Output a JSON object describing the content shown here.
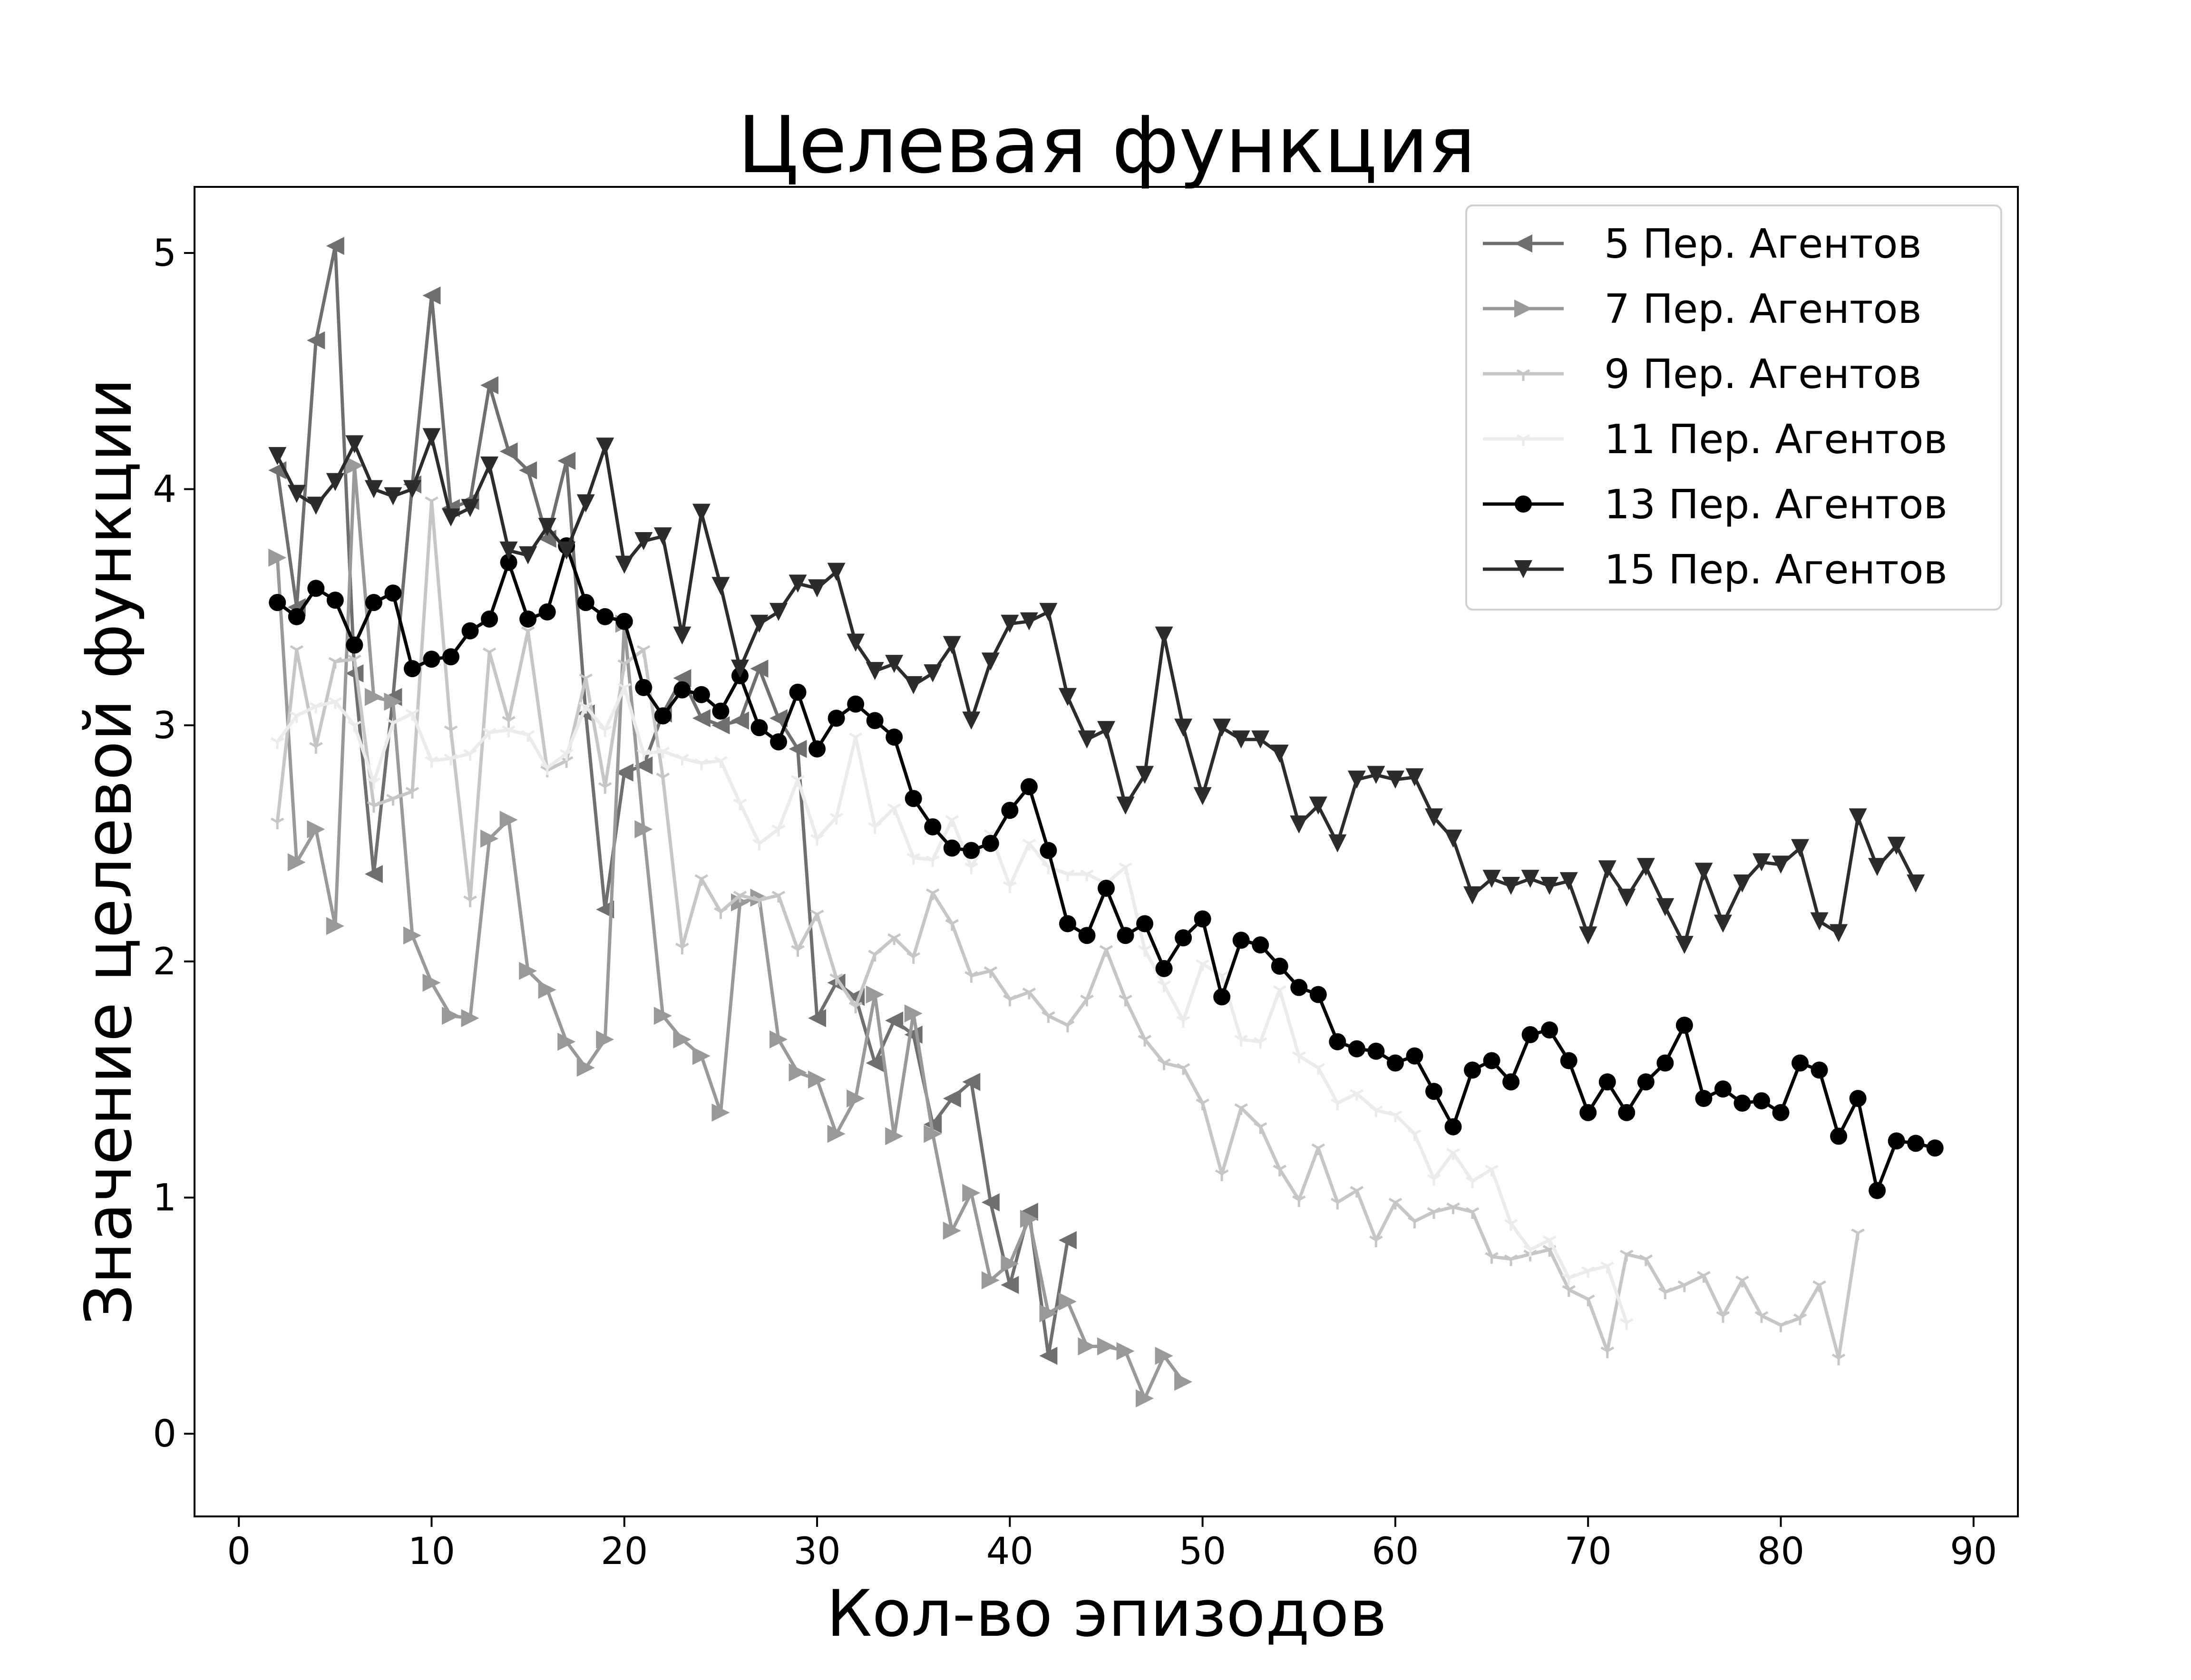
{
  "chart_data": {
    "type": "line",
    "title": "Целевая функция",
    "xlabel": "Кол-во эпизодов",
    "ylabel": "Значение целевой функции",
    "xlim": [
      -2.3,
      92.3
    ],
    "ylim": [
      -0.35,
      5.28
    ],
    "xticks": [
      0,
      10,
      20,
      30,
      40,
      50,
      60,
      70,
      80,
      90
    ],
    "yticks": [
      0,
      1,
      2,
      3,
      4,
      5
    ],
    "grid": false,
    "legend_position": "top-right",
    "series": [
      {
        "name": "5 Пер. Агентов",
        "color": "#6f6f6f",
        "marker": "triangle-left",
        "x": [
          2,
          3,
          4,
          5,
          6,
          7,
          8,
          9,
          10,
          11,
          12,
          13,
          14,
          15,
          16,
          17,
          18,
          19,
          20,
          21,
          22,
          23,
          24,
          25,
          26,
          27,
          28,
          29,
          30,
          31,
          32,
          33,
          34,
          35,
          36,
          37,
          38,
          39,
          40,
          41,
          42,
          43
        ],
        "y": [
          4.08,
          3.5,
          4.63,
          5.03,
          3.22,
          2.37,
          3.12,
          4.02,
          4.82,
          3.92,
          3.95,
          4.44,
          4.16,
          4.08,
          3.79,
          4.12,
          3.05,
          2.22,
          2.8,
          2.83,
          3.05,
          3.2,
          3.03,
          3.0,
          3.02,
          3.24,
          3.03,
          2.9,
          1.76,
          1.91,
          1.85,
          1.57,
          1.75,
          1.69,
          1.31,
          1.42,
          1.49,
          0.98,
          0.63,
          0.94,
          0.33,
          0.82
        ]
      },
      {
        "name": "7 Пер. Агентов",
        "color": "#999999",
        "marker": "triangle-right",
        "x": [
          2,
          3,
          4,
          5,
          6,
          7,
          8,
          9,
          10,
          11,
          12,
          13,
          14,
          15,
          16,
          17,
          18,
          19,
          20,
          21,
          22,
          23,
          24,
          25,
          26,
          27,
          28,
          29,
          30,
          31,
          32,
          33,
          34,
          35,
          36,
          37,
          38,
          39,
          40,
          41,
          42,
          43,
          44,
          45,
          46,
          47,
          48,
          49
        ],
        "y": [
          3.71,
          2.42,
          2.56,
          2.15,
          4.1,
          3.12,
          3.1,
          2.11,
          1.91,
          1.77,
          1.76,
          2.52,
          2.6,
          1.96,
          1.88,
          1.66,
          1.55,
          1.67,
          3.43,
          2.56,
          1.77,
          1.67,
          1.6,
          1.36,
          2.25,
          2.27,
          1.67,
          1.53,
          1.5,
          1.27,
          1.42,
          1.86,
          1.26,
          1.78,
          1.27,
          0.86,
          1.02,
          0.65,
          0.72,
          0.91,
          0.51,
          0.56,
          0.37,
          0.37,
          0.35,
          0.15,
          0.33,
          0.22
        ]
      },
      {
        "name": "9 Пер. Агентов",
        "color": "#c6c6c6",
        "marker": "tri-down",
        "x": [
          2,
          3,
          4,
          5,
          6,
          7,
          8,
          9,
          10,
          11,
          12,
          13,
          14,
          15,
          16,
          17,
          18,
          19,
          20,
          21,
          22,
          23,
          24,
          25,
          26,
          27,
          28,
          29,
          30,
          31,
          32,
          33,
          34,
          35,
          36,
          37,
          38,
          39,
          40,
          41,
          42,
          43,
          44,
          45,
          46,
          47,
          48,
          49,
          50,
          51,
          52,
          53,
          54,
          55,
          56,
          57,
          58,
          59,
          60,
          61,
          62,
          63,
          64,
          65,
          66,
          67,
          68,
          69,
          70,
          71,
          72,
          73,
          74,
          75,
          76,
          77,
          78,
          79,
          80,
          81,
          82,
          83,
          84
        ],
        "y": [
          2.59,
          3.32,
          2.91,
          3.27,
          3.28,
          2.66,
          2.69,
          2.72,
          3.95,
          2.98,
          2.26,
          3.31,
          3.02,
          3.4,
          2.81,
          2.85,
          3.2,
          2.74,
          3.26,
          3.32,
          2.78,
          2.06,
          2.35,
          2.21,
          2.28,
          2.26,
          2.28,
          2.05,
          2.2,
          1.93,
          1.81,
          2.03,
          2.1,
          2.02,
          2.29,
          2.16,
          1.94,
          1.96,
          1.84,
          1.87,
          1.77,
          1.73,
          1.84,
          2.05,
          1.84,
          1.67,
          1.57,
          1.55,
          1.4,
          1.1,
          1.38,
          1.3,
          1.12,
          0.99,
          1.21,
          0.98,
          1.03,
          0.82,
          0.98,
          0.9,
          0.94,
          0.96,
          0.94,
          0.75,
          0.74,
          0.76,
          0.78,
          0.61,
          0.57,
          0.35,
          0.76,
          0.74,
          0.6,
          0.63,
          0.67,
          0.5,
          0.65,
          0.5,
          0.46,
          0.49,
          0.63,
          0.32,
          0.85
        ]
      },
      {
        "name": "11 Пер. Агентов",
        "color": "#ebebeb",
        "marker": "tri-down",
        "x": [
          2,
          3,
          4,
          5,
          6,
          7,
          8,
          9,
          10,
          11,
          12,
          13,
          14,
          15,
          16,
          17,
          18,
          19,
          20,
          21,
          22,
          23,
          24,
          25,
          26,
          27,
          28,
          29,
          30,
          31,
          32,
          33,
          34,
          35,
          36,
          37,
          38,
          39,
          40,
          41,
          42,
          43,
          44,
          45,
          46,
          47,
          48,
          49,
          50,
          51,
          52,
          53,
          54,
          55,
          56,
          57,
          58,
          59,
          60,
          61,
          62,
          63,
          64,
          65,
          66,
          67,
          68,
          69,
          70,
          71,
          72
        ],
        "y": [
          2.93,
          3.04,
          3.08,
          3.1,
          3.0,
          2.76,
          3.01,
          3.05,
          2.85,
          2.86,
          2.88,
          2.97,
          2.98,
          2.96,
          2.82,
          2.88,
          3.08,
          2.98,
          3.16,
          2.88,
          2.89,
          2.86,
          2.84,
          2.85,
          2.67,
          2.5,
          2.56,
          2.77,
          2.52,
          2.61,
          2.95,
          2.57,
          2.65,
          2.44,
          2.43,
          2.6,
          2.4,
          2.54,
          2.32,
          2.5,
          2.4,
          2.37,
          2.37,
          2.33,
          2.4,
          2.05,
          1.9,
          1.75,
          1.99,
          1.94,
          1.67,
          1.66,
          1.88,
          1.6,
          1.55,
          1.4,
          1.44,
          1.37,
          1.35,
          1.27,
          1.08,
          1.19,
          1.07,
          1.12,
          0.89,
          0.78,
          0.82,
          0.66,
          0.69,
          0.71,
          0.47
        ]
      },
      {
        "name": "13 Пер. Агентов",
        "color": "#000000",
        "marker": "circle",
        "x": [
          2,
          3,
          4,
          5,
          6,
          7,
          8,
          9,
          10,
          11,
          12,
          13,
          14,
          15,
          16,
          17,
          18,
          19,
          20,
          21,
          22,
          23,
          24,
          25,
          26,
          27,
          28,
          29,
          30,
          31,
          32,
          33,
          34,
          35,
          36,
          37,
          38,
          39,
          40,
          41,
          42,
          43,
          44,
          45,
          46,
          47,
          48,
          49,
          50,
          51,
          52,
          53,
          54,
          55,
          56,
          57,
          58,
          59,
          60,
          61,
          62,
          63,
          64,
          65,
          66,
          67,
          68,
          69,
          70,
          71,
          72,
          73,
          74,
          75,
          76,
          77,
          78,
          79,
          80,
          81,
          82,
          83,
          84,
          85,
          86,
          87,
          88
        ],
        "y": [
          3.52,
          3.46,
          3.58,
          3.53,
          3.34,
          3.52,
          3.56,
          3.24,
          3.28,
          3.29,
          3.4,
          3.45,
          3.69,
          3.45,
          3.48,
          3.76,
          3.52,
          3.46,
          3.44,
          3.16,
          3.04,
          3.15,
          3.13,
          3.06,
          3.21,
          2.99,
          2.93,
          3.14,
          2.9,
          3.03,
          3.09,
          3.02,
          2.95,
          2.69,
          2.57,
          2.48,
          2.47,
          2.5,
          2.64,
          2.74,
          2.47,
          2.16,
          2.11,
          2.31,
          2.11,
          2.16,
          1.97,
          2.1,
          2.18,
          1.85,
          2.09,
          2.07,
          1.98,
          1.89,
          1.86,
          1.66,
          1.63,
          1.62,
          1.57,
          1.6,
          1.45,
          1.3,
          1.54,
          1.58,
          1.49,
          1.69,
          1.71,
          1.58,
          1.36,
          1.49,
          1.36,
          1.49,
          1.57,
          1.73,
          1.42,
          1.46,
          1.4,
          1.41,
          1.36,
          1.57,
          1.54,
          1.26,
          1.42,
          1.03,
          1.24,
          1.23,
          1.21
        ]
      },
      {
        "name": "15 Пер. Агентов",
        "color": "#2c2c2c",
        "marker": "triangle-down",
        "x": [
          2,
          3,
          4,
          5,
          6,
          7,
          8,
          9,
          10,
          11,
          12,
          13,
          14,
          15,
          16,
          17,
          18,
          19,
          20,
          21,
          22,
          23,
          24,
          25,
          26,
          27,
          28,
          29,
          30,
          31,
          32,
          33,
          34,
          35,
          36,
          37,
          38,
          39,
          40,
          41,
          42,
          43,
          44,
          45,
          46,
          47,
          48,
          49,
          50,
          51,
          52,
          53,
          54,
          55,
          56,
          57,
          58,
          59,
          60,
          61,
          62,
          63,
          64,
          65,
          66,
          67,
          68,
          69,
          70,
          71,
          72,
          73,
          74,
          75,
          76,
          77,
          78,
          79,
          80,
          81,
          82,
          83,
          84,
          85,
          86,
          87
        ],
        "y": [
          4.14,
          3.98,
          3.93,
          4.03,
          4.19,
          4.0,
          3.97,
          4.0,
          4.22,
          3.88,
          3.92,
          4.1,
          3.74,
          3.72,
          3.84,
          3.74,
          3.94,
          4.18,
          3.68,
          3.78,
          3.8,
          3.38,
          3.9,
          3.59,
          3.24,
          3.43,
          3.48,
          3.6,
          3.58,
          3.65,
          3.35,
          3.23,
          3.26,
          3.17,
          3.22,
          3.34,
          3.02,
          3.27,
          3.43,
          3.44,
          3.48,
          3.12,
          2.94,
          2.98,
          2.66,
          2.79,
          3.38,
          2.99,
          2.7,
          2.99,
          2.94,
          2.94,
          2.88,
          2.58,
          2.66,
          2.5,
          2.77,
          2.79,
          2.77,
          2.78,
          2.61,
          2.52,
          2.28,
          2.35,
          2.32,
          2.35,
          2.32,
          2.34,
          2.11,
          2.39,
          2.27,
          2.4,
          2.23,
          2.07,
          2.38,
          2.16,
          2.33,
          2.42,
          2.41,
          2.48,
          2.17,
          2.12,
          2.61,
          2.4,
          2.49,
          2.33
        ]
      }
    ]
  }
}
